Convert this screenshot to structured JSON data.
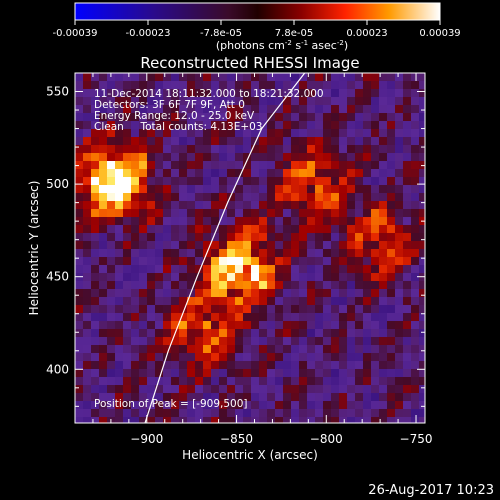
{
  "chart_data": {
    "type": "heatmap",
    "title": "Reconstructed RHESSI Image",
    "xlabel": "Heliocentric X (arcsec)",
    "ylabel": "Heliocentric Y (arcsec)",
    "xlim": [
      -940,
      -745
    ],
    "ylim": [
      371,
      560
    ],
    "x_ticks": [
      -900,
      -850,
      -800,
      -750
    ],
    "y_ticks": [
      400,
      450,
      500,
      550
    ],
    "colorbar": {
      "range": [
        -0.00039,
        0.00039
      ],
      "ticks": [
        "-0.00039",
        "-0.00023",
        "-7.8e-05",
        "7.8e-05",
        "0.00023",
        "0.00039"
      ],
      "units_prefix": "(photons cm",
      "units_exp1": "-2",
      "units_mid": " s",
      "units_exp2": "-1",
      "units_mid2": " asec",
      "units_exp3": "-2",
      "units_suffix": ")"
    },
    "annotations": {
      "time_range": "11-Dec-2014 18:11:32.000 to 18:21:32.000",
      "detectors": "Detectors: 3F 6F 7F 9F, Att 0",
      "energy": "Energy Range: 12.0 - 25.0 keV",
      "clean_total": "Clean     Total counts: 4.13E+03",
      "peak": "Position of Peak = [-909,500]"
    },
    "peak_position": [
      -909,
      500
    ],
    "limb_curve": [
      [
        -901,
        371
      ],
      [
        -888,
        410
      ],
      [
        -872,
        450
      ],
      [
        -855,
        490
      ],
      [
        -836,
        530
      ],
      [
        -812,
        560
      ]
    ],
    "bright_sources": [
      {
        "x": -918,
        "y": 502,
        "level": 1.0
      },
      {
        "x": -848,
        "y": 455,
        "level": 0.85
      },
      {
        "x": -808,
        "y": 500,
        "level": 0.55
      },
      {
        "x": -870,
        "y": 420,
        "level": 0.5
      },
      {
        "x": -770,
        "y": 470,
        "level": 0.5
      }
    ]
  },
  "footer": {
    "datetime": "26-Aug-2017 10:23"
  }
}
